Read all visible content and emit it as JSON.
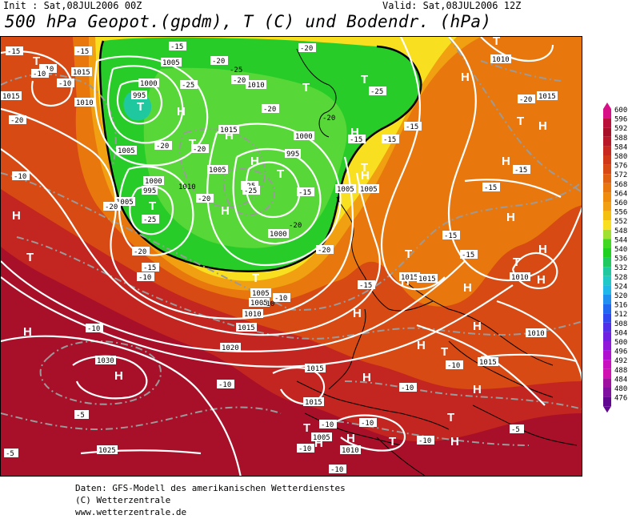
{
  "header": {
    "init": "Init : Sat,08JUL2006 00Z",
    "valid": "Valid: Sat,08JUL2006 12Z",
    "title": "500 hPa Geopot.(gpdm), T (C) und Bodendr. (hPa)"
  },
  "footer": {
    "line1": "Daten: GFS-Modell des amerikanischen Wetterdienstes",
    "line2": "(C) Wetterzentrale",
    "line3": "www.wetterzentrale.de"
  },
  "colors": {
    "deep_red": "#a8102a",
    "red": "#c8281c",
    "red_orange": "#d84a14",
    "orange": "#e8780e",
    "orange_yellow": "#f0a010",
    "yellow": "#f8e020",
    "green": "#20d020",
    "green_light": "#60e030",
    "isobar": "#ffffff",
    "isotherm": "#9a9a9a"
  },
  "scale": {
    "values": [
      "600",
      "596",
      "592",
      "588",
      "584",
      "580",
      "576",
      "572",
      "568",
      "564",
      "560",
      "556",
      "552",
      "548",
      "544",
      "540",
      "536",
      "532",
      "528",
      "524",
      "520",
      "516",
      "512",
      "508",
      "504",
      "500",
      "496",
      "492",
      "488",
      "484",
      "480",
      "476"
    ],
    "colors": [
      "#d81088",
      "#b81038",
      "#a8102a",
      "#b81828",
      "#c82820",
      "#d03818",
      "#d84a14",
      "#e06012",
      "#e8780e",
      "#f08c0c",
      "#f0a010",
      "#f4c010",
      "#f8e020",
      "#a0e030",
      "#40d820",
      "#20d020",
      "#20c860",
      "#20c8a0",
      "#20c8c8",
      "#20b8e8",
      "#2090f0",
      "#2068f0",
      "#3048f0",
      "#5030e8",
      "#7020e0",
      "#9018d8",
      "#b010d0",
      "#c810c0",
      "#d010b0",
      "#a010a0",
      "#8010a0",
      "#600890"
    ]
  },
  "map_labels": {
    "highs": [
      "H",
      "H",
      "H",
      "H",
      "H",
      "H",
      "H",
      "H",
      "H",
      "H",
      "H",
      "H",
      "H",
      "H",
      "H",
      "H",
      "H",
      "H",
      "H",
      "H",
      "H",
      "H",
      "H",
      "H",
      "H"
    ],
    "lows": [
      "T",
      "T",
      "T",
      "T",
      "T",
      "T",
      "T",
      "T",
      "T",
      "T",
      "T",
      "T",
      "T",
      "T",
      "T",
      "T",
      "T",
      "T"
    ],
    "isobar_labels": [
      "1005",
      "1015",
      "1010",
      "1000",
      "995",
      "1015",
      "1005",
      "1010",
      "1015",
      "1005",
      "1000",
      "995",
      "995",
      "1000",
      "1005",
      "1005",
      "1010",
      "1015",
      "1000",
      "1005",
      "1010",
      "1015",
      "1020",
      "1030",
      "1015",
      "1015",
      "1015",
      "1010",
      "1010",
      "1015",
      "1025",
      "1005",
      "1010",
      "1005",
      "1015",
      "1010",
      "1005"
    ],
    "temp_labels": [
      "-15",
      "-10",
      "-10",
      "-25",
      "-20",
      "-20",
      "-25",
      "-20",
      "-20",
      "-20",
      "-15",
      "-20",
      "-20",
      "-25",
      "-25",
      "-20",
      "-20",
      "-25",
      "-15",
      "-20",
      "-15",
      "-10",
      "-15",
      "-15",
      "-15",
      "-15",
      "-10",
      "-10",
      "-20",
      "-15",
      "-10",
      "-15",
      "-10",
      "-15",
      "-20",
      "-10",
      "-5",
      "-10",
      "-10",
      "-5",
      "-10",
      "-10",
      "-10",
      "-10",
      "-10",
      "-5",
      "-10",
      "-15",
      "-20",
      "-15",
      "-25",
      "-20"
    ]
  }
}
